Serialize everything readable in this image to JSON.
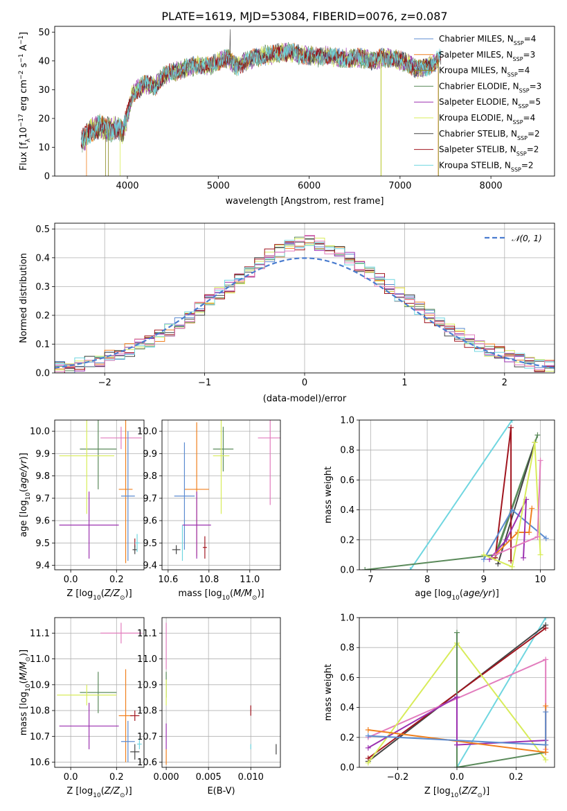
{
  "figure_title": "PLATE=1619, MJD=53084, FIBERID=0076, z=0.087",
  "colors": {
    "Chabrier MILES": "#5b8bd0",
    "Salpeter MILES": "#f07f1d",
    "Kroupa MILES": "#8a8a20",
    "Chabrier ELODIE": "#5a8a5a",
    "Salpeter ELODIE": "#9b30b0",
    "Kroupa ELODIE": "#d8ec5a",
    "Chabrier STELIB": "#444444",
    "Salpeter STELIB": "#a0141e",
    "Kroupa STELIB": "#6fd6e0",
    "pink": "#e27cbd",
    "normal": "#4a7ccf"
  },
  "chart_data": [
    {
      "id": "spectrum",
      "type": "line",
      "xlabel": "wavelength [Angstrom, rest frame]",
      "ylabel_parts": [
        "Flux [f",
        "λ",
        "10",
        "−17",
        " erg cm",
        "−2",
        " s",
        "−1",
        " A",
        "−1",
        "]"
      ],
      "xlim": [
        3200,
        8700
      ],
      "ylim": [
        0,
        52
      ],
      "xticks": [
        4000,
        5000,
        6000,
        7000,
        8000
      ],
      "yticks": [
        0,
        10,
        20,
        30,
        40,
        50
      ],
      "anchors": [
        [
          3500,
          12
        ],
        [
          3600,
          16
        ],
        [
          3700,
          17
        ],
        [
          3800,
          16
        ],
        [
          3900,
          17
        ],
        [
          3950,
          15
        ],
        [
          4000,
          21
        ],
        [
          4050,
          28
        ],
        [
          4100,
          30
        ],
        [
          4200,
          32
        ],
        [
          4300,
          31
        ],
        [
          4400,
          35
        ],
        [
          4500,
          36
        ],
        [
          4600,
          37
        ],
        [
          4700,
          38
        ],
        [
          4800,
          39
        ],
        [
          4900,
          38
        ],
        [
          5000,
          40
        ],
        [
          5100,
          41
        ],
        [
          5200,
          38
        ],
        [
          5300,
          40
        ],
        [
          5400,
          41
        ],
        [
          5500,
          42
        ],
        [
          5600,
          42
        ],
        [
          5700,
          43
        ],
        [
          5800,
          43
        ],
        [
          5900,
          42
        ],
        [
          6000,
          42
        ],
        [
          6100,
          41
        ],
        [
          6200,
          42
        ],
        [
          6300,
          41
        ],
        [
          6400,
          41
        ],
        [
          6500,
          41
        ],
        [
          6600,
          41
        ],
        [
          6700,
          40
        ],
        [
          6800,
          41
        ],
        [
          6900,
          41
        ],
        [
          7000,
          40
        ],
        [
          7100,
          39
        ],
        [
          7200,
          37
        ],
        [
          7300,
          38
        ],
        [
          7400,
          40
        ],
        [
          7450,
          41
        ]
      ],
      "legend_position": "top-right",
      "legend": [
        {
          "name": "Chabrier MILES",
          "n": "4"
        },
        {
          "name": "Salpeter MILES",
          "n": "3"
        },
        {
          "name": "Kroupa MILES",
          "n": "4"
        },
        {
          "name": "Chabrier ELODIE",
          "n": "3"
        },
        {
          "name": "Salpeter ELODIE",
          "n": "5"
        },
        {
          "name": "Kroupa ELODIE",
          "n": "4"
        },
        {
          "name": "Chabrier STELIB",
          "n": "2"
        },
        {
          "name": "Salpeter STELIB",
          "n": "2"
        },
        {
          "name": "Kroupa STELIB",
          "n": "2"
        }
      ],
      "legend_sub": "SSP",
      "legend_prefix": "N"
    },
    {
      "id": "residuals",
      "type": "step-histogram",
      "xlabel": "(data-model)/error",
      "ylabel": "Normed distribution",
      "xlim": [
        -2.5,
        2.5
      ],
      "ylim": [
        0,
        0.52
      ],
      "xticks": [
        -2,
        -1,
        0,
        1,
        2
      ],
      "yticks": [
        0.0,
        0.1,
        0.2,
        0.3,
        0.4,
        0.5
      ],
      "grid": true,
      "normal_legend": "𝒩(0, 1)",
      "bin_width": 0.1
    },
    {
      "id": "z-age",
      "type": "errorbar",
      "xlabel": "Z [log10(Z/Z⊙)]",
      "ylabel": "age  [log10(age/yr)]",
      "xlim": [
        -0.07,
        0.32
      ],
      "ylim": [
        9.38,
        10.05
      ],
      "xticks": [
        0.0,
        0.2
      ],
      "yticks": [
        9.4,
        9.5,
        9.6,
        9.7,
        9.8,
        9.9,
        10.0
      ],
      "points": [
        {
          "c": "pink",
          "x": 0.22,
          "xe": 0.09,
          "y": 9.97,
          "ye": 0.05
        },
        {
          "c": "Chabrier ELODIE",
          "x": 0.12,
          "xe": 0.08,
          "y": 9.92,
          "ye": 0.18
        },
        {
          "c": "Kroupa ELODIE",
          "x": 0.07,
          "xe": 0.12,
          "y": 9.89,
          "ye": 0.26
        },
        {
          "c": "Salpeter MILES",
          "x": 0.24,
          "xe": 0.03,
          "y": 9.74,
          "ye": 0.33
        },
        {
          "c": "Chabrier MILES",
          "x": 0.25,
          "xe": 0.03,
          "y": 9.71,
          "ye": 0.29
        },
        {
          "c": "Salpeter ELODIE",
          "x": 0.08,
          "xe": 0.13,
          "y": 9.58,
          "ye": 0.15
        },
        {
          "c": "Salpeter STELIB",
          "x": 0.28,
          "xe": 0.0,
          "y": 9.5,
          "ye": 0.02
        },
        {
          "c": "Chabrier STELIB",
          "x": 0.28,
          "xe": 0.01,
          "y": 9.47,
          "ye": 0.02
        },
        {
          "c": "Kroupa STELIB",
          "x": 0.29,
          "xe": 0.01,
          "y": 9.5,
          "ye": 0.04
        }
      ]
    },
    {
      "id": "mass-age",
      "type": "errorbar",
      "xlabel": "mass [log10(M/M⊙)]",
      "xlim": [
        10.57,
        11.15
      ],
      "ylim": [
        9.38,
        10.05
      ],
      "xticks": [
        10.6,
        10.8,
        11.0
      ],
      "yticks": [
        9.4,
        9.5,
        9.6,
        9.7,
        9.8,
        9.9,
        10.0
      ],
      "points": [
        {
          "c": "pink",
          "x": 11.1,
          "xe": 0.06,
          "y": 9.97,
          "ye": 0.3
        },
        {
          "c": "Chabrier ELODIE",
          "x": 10.87,
          "xe": 0.05,
          "y": 9.92,
          "ye": 0.1
        },
        {
          "c": "Kroupa ELODIE",
          "x": 10.86,
          "xe": 0.04,
          "y": 9.89,
          "ye": 0.26
        },
        {
          "c": "Salpeter MILES",
          "x": 10.74,
          "xe": 0.06,
          "y": 9.74,
          "ye": 0.3
        },
        {
          "c": "Chabrier MILES",
          "x": 10.68,
          "xe": 0.05,
          "y": 9.71,
          "ye": 0.24
        },
        {
          "c": "Salpeter ELODIE",
          "x": 10.74,
          "xe": 0.07,
          "y": 9.58,
          "ye": 0.15
        },
        {
          "c": "Salpeter STELIB",
          "x": 10.78,
          "xe": 0.01,
          "y": 9.48,
          "ye": 0.05
        },
        {
          "c": "Chabrier STELIB",
          "x": 10.64,
          "xe": 0.02,
          "y": 9.47,
          "ye": 0.02
        },
        {
          "c": "Kroupa STELIB",
          "x": 10.67,
          "xe": 0.0,
          "y": 9.5,
          "ye": 0.08
        }
      ]
    },
    {
      "id": "age-weight",
      "type": "line",
      "xlabel": "age  [log10(age/yr)]",
      "ylabel": "mass weight",
      "xlim": [
        6.8,
        10.25
      ],
      "ylim": [
        0.0,
        1.0
      ],
      "xticks": [
        7,
        8,
        9,
        10
      ],
      "yticks": [
        0.0,
        0.2,
        0.4,
        0.6,
        0.8,
        1.0
      ],
      "series": [
        {
          "c": "Kroupa STELIB",
          "x": [
            7.7,
            9.5
          ],
          "y": [
            0.0,
            1.0
          ]
        },
        {
          "c": "Chabrier ELODIE",
          "x": [
            6.9,
            9.2,
            9.95,
            9.2
          ],
          "y": [
            0.0,
            0.1,
            0.9,
            0.08
          ]
        },
        {
          "c": "Chabrier STELIB",
          "x": [
            9.25,
            9.9
          ],
          "y": [
            0.04,
            0.85
          ]
        },
        {
          "c": "Salpeter STELIB",
          "x": [
            9.2,
            9.48,
            9.48
          ],
          "y": [
            0.08,
            0.95,
            0.06
          ]
        },
        {
          "c": "Chabrier MILES",
          "x": [
            9.0,
            9.5,
            10.1
          ],
          "y": [
            0.07,
            0.4,
            0.21
          ]
        },
        {
          "c": "Salpeter MILES",
          "x": [
            9.2,
            9.6,
            9.8,
            9.85
          ],
          "y": [
            0.1,
            0.25,
            0.25,
            0.41
          ]
        },
        {
          "c": "Salpeter ELODIE",
          "x": [
            9.1,
            9.4,
            9.75,
            9.7
          ],
          "y": [
            0.07,
            0.2,
            0.47,
            0.08
          ]
        },
        {
          "c": "Kroupa ELODIE",
          "x": [
            9.0,
            9.5,
            9.9,
            10.0
          ],
          "y": [
            0.1,
            0.02,
            0.85,
            0.1
          ]
        },
        {
          "c": "pink",
          "x": [
            9.2,
            9.95,
            10.0
          ],
          "y": [
            0.1,
            0.22,
            0.73
          ]
        }
      ]
    },
    {
      "id": "z-mass",
      "type": "errorbar",
      "xlabel": "Z [log10(Z/Z⊙)]",
      "ylabel": "mass [log10(M/M⊙)]",
      "xlim": [
        -0.07,
        0.32
      ],
      "ylim": [
        10.58,
        11.16
      ],
      "xticks": [
        0.0,
        0.2
      ],
      "yticks": [
        10.6,
        10.7,
        10.8,
        10.9,
        11.0,
        11.1
      ],
      "points": [
        {
          "c": "pink",
          "x": 0.22,
          "xe": 0.09,
          "y": 11.1,
          "ye": 0.04
        },
        {
          "c": "Chabrier ELODIE",
          "x": 0.12,
          "xe": 0.08,
          "y": 10.87,
          "ye": 0.08
        },
        {
          "c": "Kroupa ELODIE",
          "x": 0.07,
          "xe": 0.13,
          "y": 10.86,
          "ye": 0.04
        },
        {
          "c": "Salpeter MILES",
          "x": 0.24,
          "xe": 0.03,
          "y": 10.78,
          "ye": 0.18
        },
        {
          "c": "Chabrier MILES",
          "x": 0.25,
          "xe": 0.03,
          "y": 10.68,
          "ye": 0.08
        },
        {
          "c": "Salpeter ELODIE",
          "x": 0.08,
          "xe": 0.13,
          "y": 10.74,
          "ye": 0.09
        },
        {
          "c": "Salpeter STELIB",
          "x": 0.28,
          "xe": 0.02,
          "y": 10.78,
          "ye": 0.02
        },
        {
          "c": "Chabrier STELIB",
          "x": 0.28,
          "xe": 0.02,
          "y": 10.64,
          "ye": 0.03
        },
        {
          "c": "Kroupa STELIB",
          "x": 0.3,
          "xe": 0.01,
          "y": 10.67,
          "ye": 0.02
        }
      ]
    },
    {
      "id": "ebv-mass",
      "type": "errorbar",
      "xlabel": "E(B-V)",
      "xlim": [
        -0.0005,
        0.0135
      ],
      "ylim": [
        10.58,
        11.16
      ],
      "xticks": [
        0.0,
        0.005,
        0.01
      ],
      "xtick_labels": [
        "0.000",
        "0.005",
        "0.010"
      ],
      "yticks": [
        10.6,
        10.7,
        10.8,
        10.9,
        11.0,
        11.1
      ],
      "points": [
        {
          "c": "pink",
          "x": 0.0,
          "xe": 0,
          "y": 11.05,
          "ye": 0.09
        },
        {
          "c": "Chabrier ELODIE",
          "x": 0.0,
          "xe": 0,
          "y": 10.9,
          "ye": 0.05
        },
        {
          "c": "Kroupa ELODIE",
          "x": 0.0,
          "xe": 0,
          "y": 10.87,
          "ye": 0.05
        },
        {
          "c": "Salpeter MILES",
          "x": 0.0,
          "xe": 0,
          "y": 10.62,
          "ye": 0.03
        },
        {
          "c": "Salpeter ELODIE",
          "x": 0.0,
          "xe": 0,
          "y": 10.7,
          "ye": 0.05
        },
        {
          "c": "Salpeter STELIB",
          "x": 0.01,
          "xe": 0,
          "y": 10.8,
          "ye": 0.02
        },
        {
          "c": "Kroupa STELIB",
          "x": 0.01,
          "xe": 0,
          "y": 10.66,
          "ye": 0.01
        },
        {
          "c": "Chabrier STELIB",
          "x": 0.013,
          "xe": 0,
          "y": 10.65,
          "ye": 0.02
        }
      ]
    },
    {
      "id": "z-weight",
      "type": "line",
      "xlabel": "Z [log10(Z/Z⊙)]",
      "ylabel": "mass weight",
      "xlim": [
        -0.33,
        0.33
      ],
      "ylim": [
        0.0,
        1.0
      ],
      "xticks": [
        -0.2,
        0.0,
        0.2
      ],
      "yticks": [
        0.0,
        0.2,
        0.4,
        0.6,
        0.8,
        1.0
      ],
      "series": [
        {
          "c": "Kroupa STELIB",
          "x": [
            0.0,
            0.3
          ],
          "y": [
            0.0,
            1.0
          ]
        },
        {
          "c": "Chabrier STELIB",
          "x": [
            -0.3,
            0.3
          ],
          "y": [
            0.04,
            0.95
          ]
        },
        {
          "c": "Salpeter STELIB",
          "x": [
            -0.3,
            0.3
          ],
          "y": [
            0.06,
            0.93
          ]
        },
        {
          "c": "pink",
          "x": [
            -0.3,
            0.3,
            0.3
          ],
          "y": [
            0.2,
            0.72,
            0.12
          ]
        },
        {
          "c": "Kroupa ELODIE",
          "x": [
            -0.3,
            0.0,
            0.3
          ],
          "y": [
            0.03,
            0.83,
            0.05
          ]
        },
        {
          "c": "Chabrier ELODIE",
          "x": [
            0.0,
            0.0,
            0.3
          ],
          "y": [
            0.9,
            0.0,
            0.1
          ]
        },
        {
          "c": "Salpeter ELODIE",
          "x": [
            -0.3,
            0.0,
            0.0,
            0.3
          ],
          "y": [
            0.13,
            0.47,
            0.15,
            0.18
          ]
        },
        {
          "c": "Salpeter MILES",
          "x": [
            -0.3,
            0.3,
            0.3
          ],
          "y": [
            0.25,
            0.1,
            0.41
          ]
        },
        {
          "c": "Chabrier MILES",
          "x": [
            -0.3,
            0.3,
            0.3
          ],
          "y": [
            0.21,
            0.15,
            0.37
          ]
        }
      ]
    }
  ]
}
